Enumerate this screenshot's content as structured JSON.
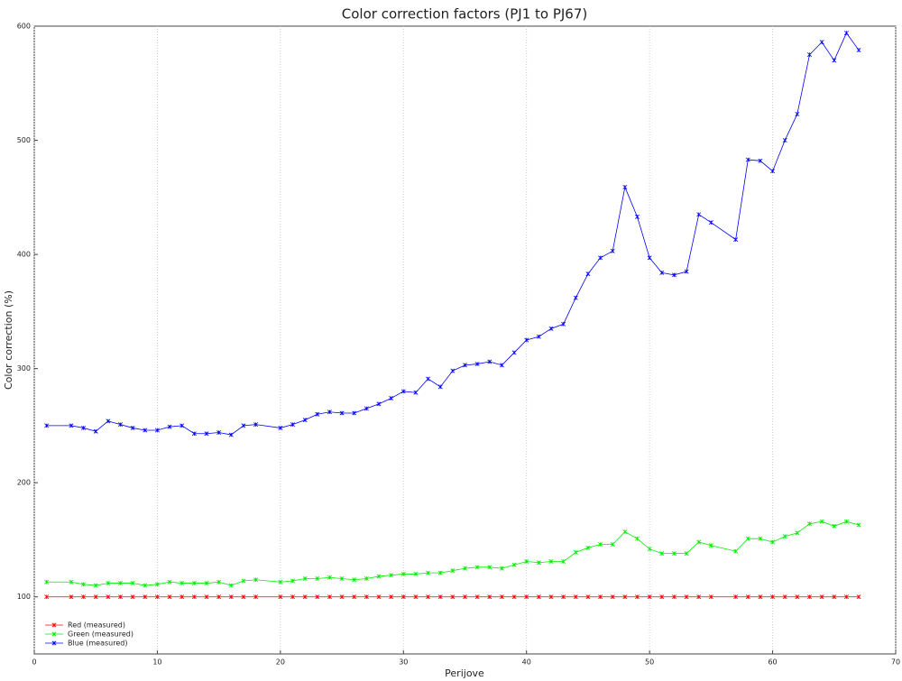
{
  "chart_data": {
    "type": "line",
    "title": "Color correction factors (PJ1 to PJ67)",
    "x_label": "Perijove",
    "y_label": "Color correction (%)",
    "x": [
      1,
      3,
      4,
      5,
      6,
      7,
      8,
      9,
      10,
      11,
      12,
      13,
      14,
      15,
      16,
      17,
      18,
      20,
      21,
      22,
      23,
      24,
      25,
      26,
      27,
      28,
      29,
      30,
      31,
      32,
      33,
      34,
      35,
      36,
      37,
      38,
      39,
      40,
      41,
      42,
      43,
      44,
      45,
      46,
      47,
      48,
      49,
      50,
      51,
      52,
      53,
      54,
      55,
      57,
      58,
      59,
      60,
      61,
      62,
      63,
      64,
      65,
      66,
      67
    ],
    "series": [
      {
        "name": "Red (measured)",
        "color": "#ff0000",
        "values": [
          100,
          100,
          100,
          100,
          100,
          100,
          100,
          100,
          100,
          100,
          100,
          100,
          100,
          100,
          100,
          100,
          100,
          100,
          100,
          100,
          100,
          100,
          100,
          100,
          100,
          100,
          100,
          100,
          100,
          100,
          100,
          100,
          100,
          100,
          100,
          100,
          100,
          100,
          100,
          100,
          100,
          100,
          100,
          100,
          100,
          100,
          100,
          100,
          100,
          100,
          100,
          100,
          100,
          100,
          100,
          100,
          100,
          100,
          100,
          100,
          100,
          100,
          100,
          100
        ]
      },
      {
        "name": "Green (measured)",
        "color": "#00ee00",
        "values": [
          113,
          113,
          111,
          110,
          112,
          112,
          112,
          110,
          111,
          113,
          112,
          112,
          112,
          113,
          110,
          114,
          115,
          113,
          114,
          116,
          116,
          117,
          116,
          115,
          116,
          118,
          119,
          120,
          120,
          121,
          121,
          123,
          125,
          126,
          126,
          125,
          128,
          131,
          130,
          131,
          131,
          139,
          143,
          146,
          146,
          157,
          151,
          142,
          138,
          138,
          138,
          148,
          145,
          140,
          151,
          151,
          148,
          153,
          156,
          164,
          166,
          162,
          166,
          163
        ]
      },
      {
        "name": "Blue (measured)",
        "color": "#0000ff",
        "values": [
          250,
          250,
          248,
          245,
          254,
          251,
          248,
          246,
          246,
          249,
          250,
          243,
          243,
          244,
          242,
          250,
          251,
          248,
          251,
          255,
          260,
          262,
          261,
          261,
          265,
          269,
          274,
          280,
          279,
          291,
          284,
          298,
          303,
          304,
          306,
          303,
          314,
          325,
          328,
          335,
          339,
          362,
          383,
          397,
          403,
          459,
          433,
          397,
          384,
          382,
          385,
          435,
          428,
          413,
          483,
          482,
          473,
          500,
          523,
          575,
          586,
          570,
          594,
          579
        ]
      }
    ],
    "xlim": [
      0,
      70
    ],
    "xticks": [
      0,
      10,
      20,
      30,
      40,
      50,
      60,
      70
    ],
    "ylim": [
      50,
      600
    ],
    "yticks": [
      100,
      200,
      300,
      400,
      500,
      600
    ],
    "grid": true,
    "legend": "lower left"
  }
}
